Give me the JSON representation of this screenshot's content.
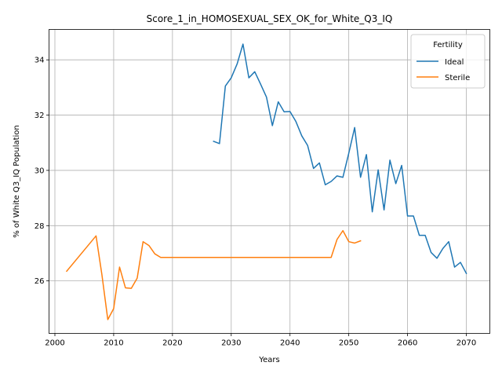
{
  "chart_data": {
    "type": "line",
    "title": "Score_1_in_HOMOSEXUAL_SEX_OK_for_White_Q3_IQ",
    "xlabel": "Years",
    "ylabel": "% of White Q3_IQ Population",
    "xlim": [
      1999,
      2074
    ],
    "ylim": [
      24.1,
      35.1
    ],
    "xticks": [
      2000,
      2010,
      2020,
      2030,
      2040,
      2050,
      2060,
      2070
    ],
    "yticks": [
      26,
      28,
      30,
      32,
      34
    ],
    "grid": true,
    "legend": {
      "title": "Fertility",
      "placement": "top-right"
    },
    "series": [
      {
        "name": "Ideal",
        "color": "#1f77b4",
        "x": [
          2027,
          2028,
          2029,
          2030,
          2031,
          2032,
          2033,
          2034,
          2035,
          2036,
          2037,
          2038,
          2039,
          2040,
          2041,
          2042,
          2043,
          2044,
          2045,
          2046,
          2047,
          2048,
          2049,
          2050,
          2051,
          2052,
          2053,
          2054,
          2055,
          2056,
          2057,
          2058,
          2059,
          2060,
          2061,
          2062,
          2063,
          2064,
          2065,
          2066,
          2067,
          2068,
          2069,
          2070
        ],
        "y": [
          31.05,
          30.97,
          33.05,
          33.35,
          33.85,
          34.57,
          33.35,
          33.57,
          33.12,
          32.65,
          31.62,
          32.48,
          32.12,
          32.13,
          31.77,
          31.25,
          30.9,
          30.07,
          30.27,
          29.48,
          29.6,
          29.8,
          29.75,
          30.62,
          31.55,
          29.75,
          30.57,
          28.5,
          30.02,
          28.57,
          30.37,
          29.52,
          30.18,
          28.35,
          28.35,
          27.65,
          27.65,
          27.03,
          26.82,
          27.17,
          27.42,
          26.5,
          26.67,
          26.27
        ]
      },
      {
        "name": "Sterile",
        "color": "#ff7f0e",
        "x": [
          2002,
          2007,
          2008,
          2009,
          2010,
          2011,
          2012,
          2013,
          2014,
          2015,
          2016,
          2017,
          2018,
          2047,
          2048,
          2049,
          2050,
          2051,
          2052
        ],
        "y": [
          26.35,
          27.63,
          26.22,
          24.6,
          25.0,
          26.5,
          25.75,
          25.73,
          26.1,
          27.42,
          27.28,
          26.98,
          26.85,
          26.85,
          27.5,
          27.82,
          27.42,
          27.37,
          27.45
        ]
      }
    ]
  }
}
